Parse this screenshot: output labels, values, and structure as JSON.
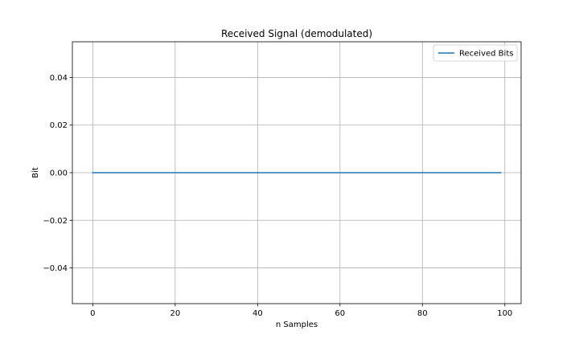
{
  "chart_data": {
    "type": "line",
    "title": "Received Signal (demodulated)",
    "xlabel": "n Samples",
    "ylabel": "Bit",
    "xlim": [
      -4.95,
      103.95
    ],
    "ylim": [
      -0.055,
      0.055
    ],
    "grid": true,
    "xticks": [
      0,
      20,
      40,
      60,
      80,
      100
    ],
    "xtick_labels": [
      "0",
      "20",
      "40",
      "60",
      "80",
      "100"
    ],
    "yticks": [
      -0.04,
      -0.02,
      0.0,
      0.02,
      0.04
    ],
    "ytick_labels": [
      "−0.04",
      "−0.02",
      "0.00",
      "0.02",
      "0.04"
    ],
    "legend_position": "top-right",
    "series": [
      {
        "name": "Received Bits",
        "color": "#1f77b4",
        "x_start": 0,
        "x_end": 99,
        "y_constant": 0.0
      }
    ]
  },
  "colors": {
    "grid": "#b0b0b0",
    "axis": "#000000",
    "background": "#ffffff"
  }
}
